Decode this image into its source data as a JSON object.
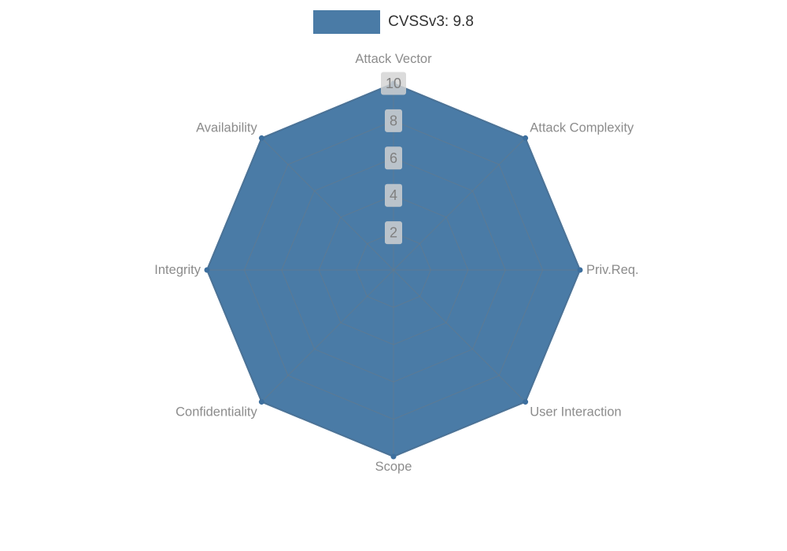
{
  "legend": {
    "label": "CVSSv3: 9.8"
  },
  "chart_data": {
    "type": "radar",
    "title": "",
    "categories": [
      "Attack Vector",
      "Attack Complexity",
      "Priv.Req.",
      "User Interaction",
      "Scope",
      "Confidentiality",
      "Integrity",
      "Availability"
    ],
    "series": [
      {
        "name": "CVSSv3: 9.8",
        "values": [
          10,
          10,
          10,
          10,
          10,
          10,
          10,
          10
        ]
      }
    ],
    "ticks": [
      2,
      4,
      6,
      8,
      10
    ],
    "max": 10,
    "legend_position": "top",
    "grid": true,
    "colors": {
      "fill": "#4a7ba6",
      "stroke": "#3d6f9e",
      "point": "#3d6f9e",
      "grid_line": "#6b7a85",
      "axis_label": "#8c8c8c",
      "tick_text": "#7f7f7f",
      "tick_box": "#d3d3d3"
    }
  }
}
